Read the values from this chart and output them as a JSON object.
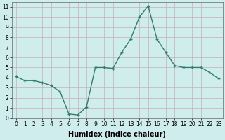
{
  "x": [
    0,
    1,
    2,
    3,
    4,
    5,
    6,
    7,
    8,
    9,
    10,
    11,
    12,
    13,
    14,
    15,
    16,
    17,
    18,
    19,
    20,
    21,
    22,
    23
  ],
  "y": [
    4.1,
    3.7,
    3.7,
    3.5,
    3.2,
    2.6,
    0.4,
    0.3,
    1.1,
    5.0,
    5.0,
    4.9,
    6.5,
    7.8,
    10.0,
    11.1,
    7.8,
    6.5,
    5.2,
    5.0,
    5.0,
    5.0,
    4.5,
    3.9
  ],
  "line_color": "#2e7d6e",
  "marker": "+",
  "marker_size": 3,
  "background_color": "#d0eded",
  "grid_color": "#c8aeb4",
  "xlabel": "Humidex (Indice chaleur)",
  "xlabel_fontsize": 7,
  "xlim": [
    -0.5,
    23.5
  ],
  "ylim": [
    0,
    11.5
  ],
  "yticks": [
    0,
    1,
    2,
    3,
    4,
    5,
    6,
    7,
    8,
    9,
    10,
    11
  ],
  "xticks": [
    0,
    1,
    2,
    3,
    4,
    5,
    6,
    7,
    8,
    9,
    10,
    11,
    12,
    13,
    14,
    15,
    16,
    17,
    18,
    19,
    20,
    21,
    22,
    23
  ],
  "tick_fontsize": 5.5,
  "line_width": 1.0
}
